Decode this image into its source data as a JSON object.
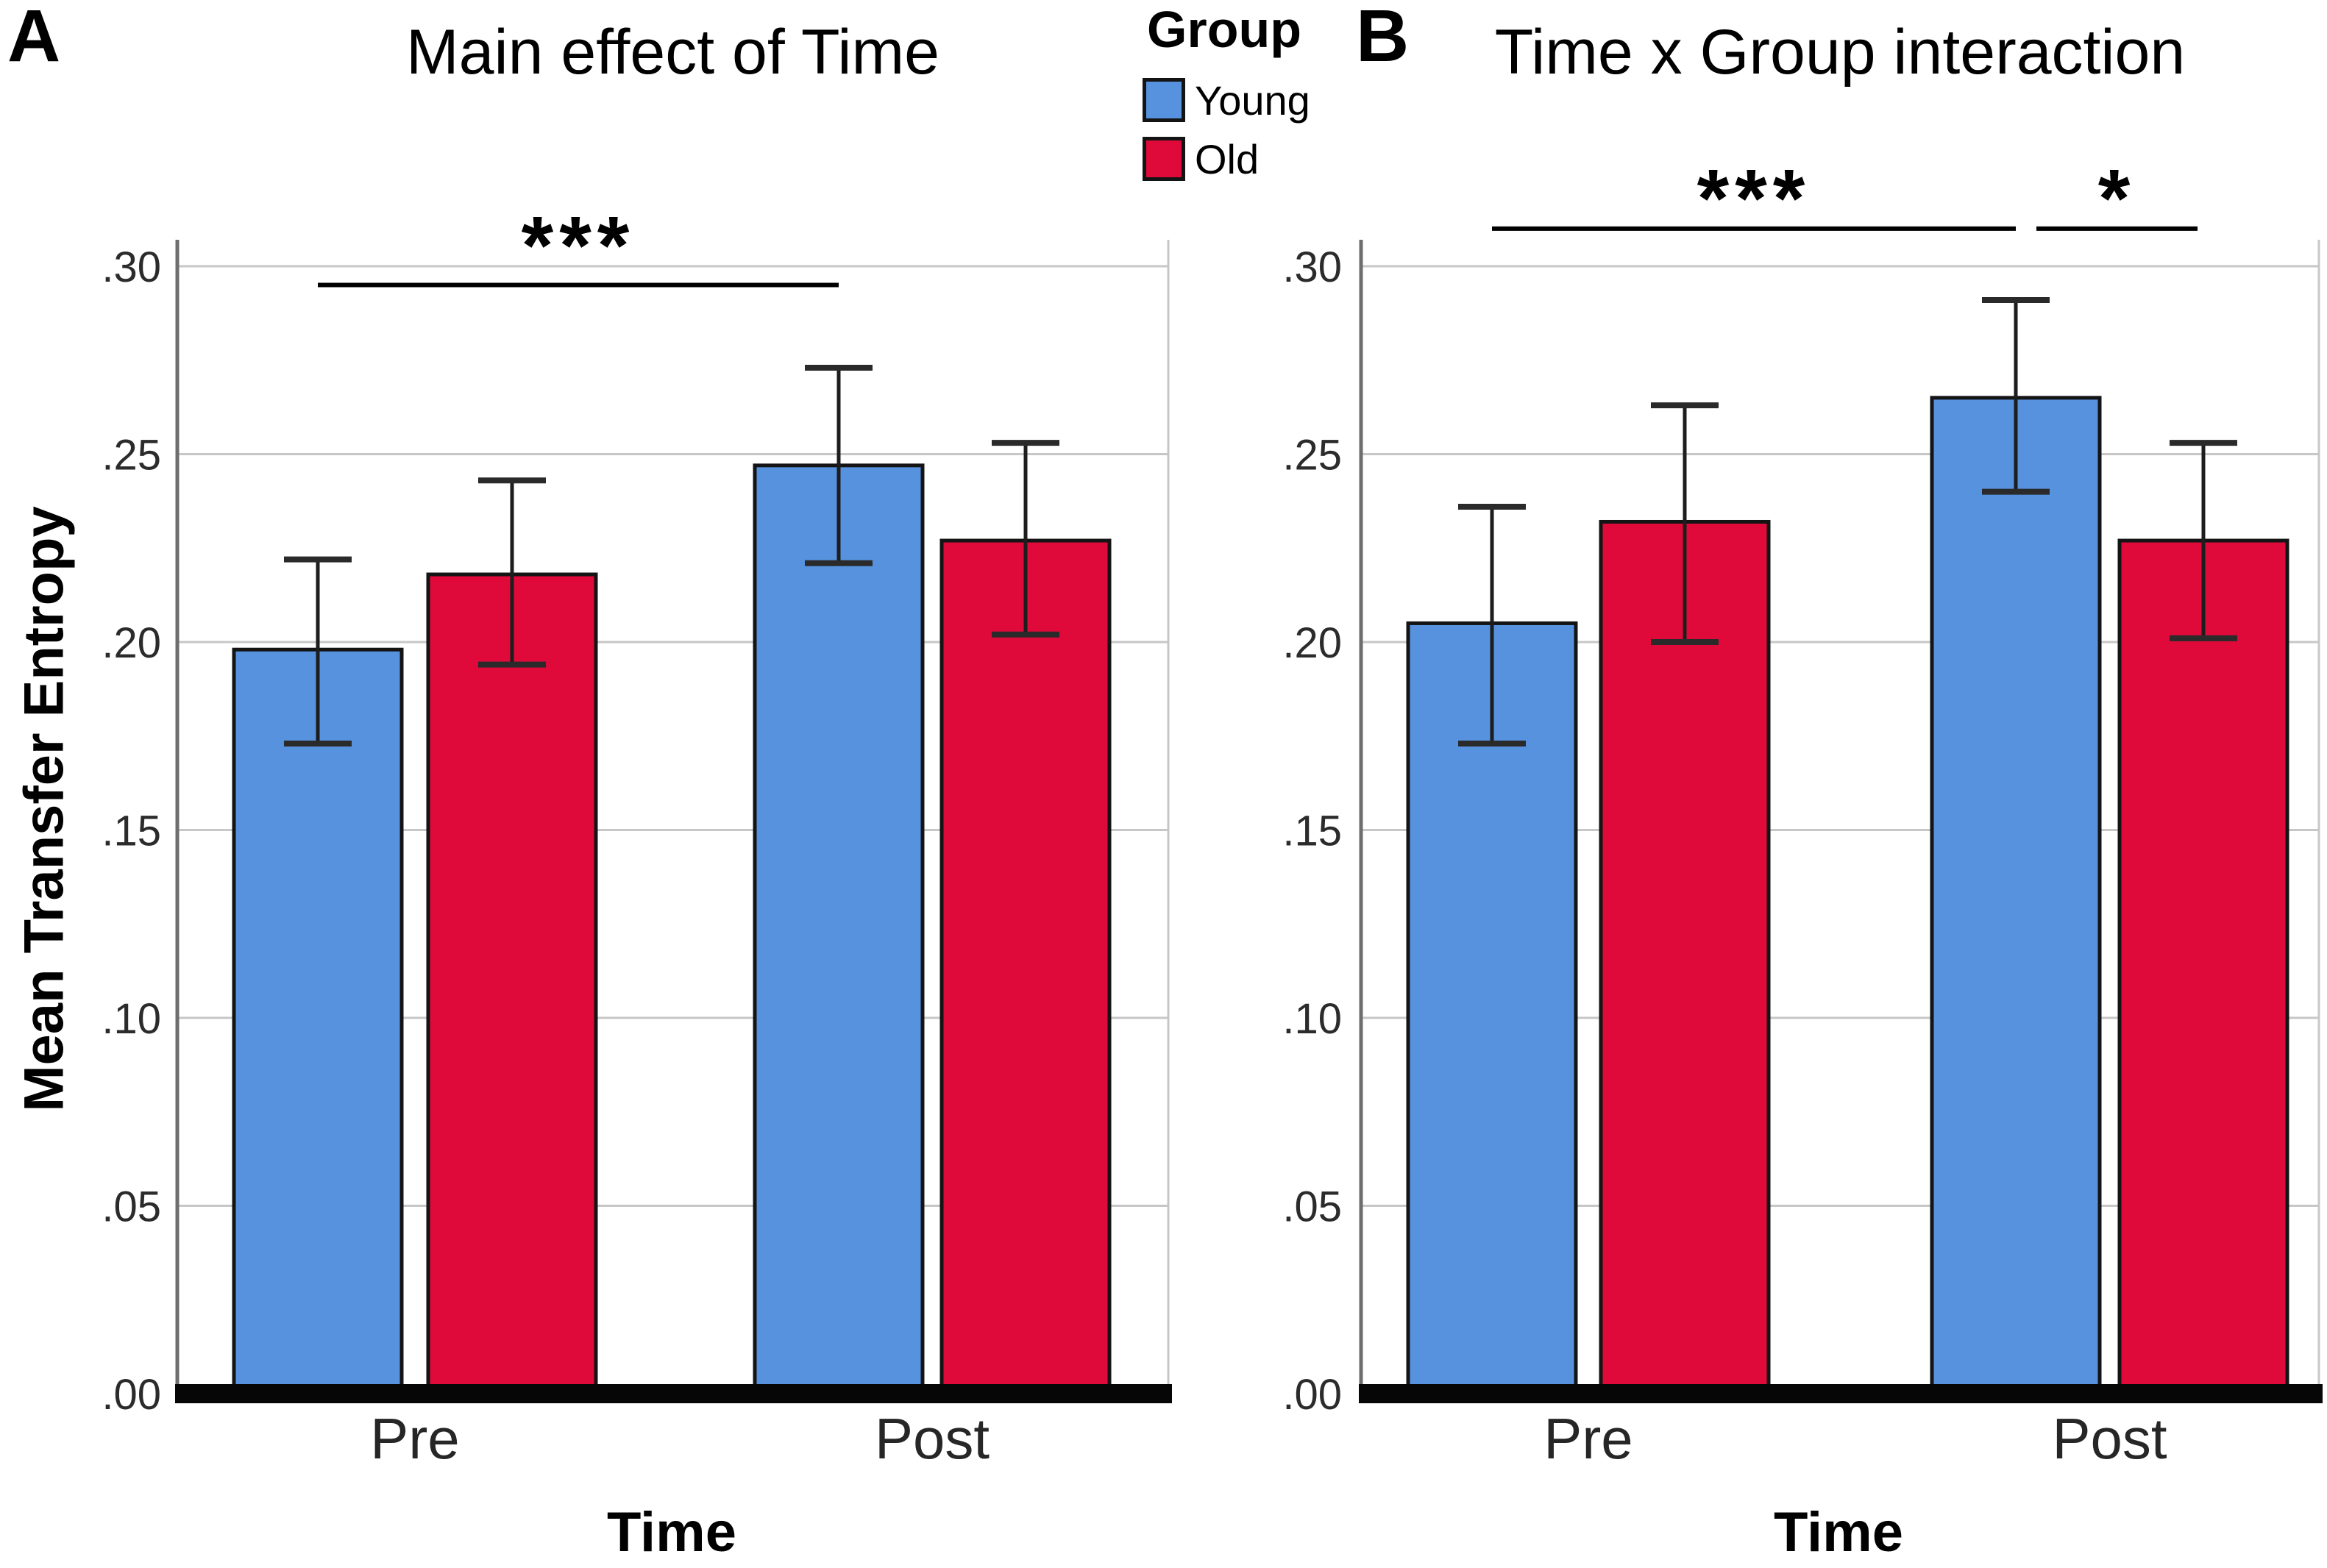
{
  "figure": {
    "panels": [
      {
        "letter": "A",
        "title": "Main effect of Time"
      },
      {
        "letter": "B",
        "title": "Time x Group interaction"
      }
    ]
  },
  "legend": {
    "title": "Group",
    "items": [
      {
        "label": "Young",
        "color": "#5792DF"
      },
      {
        "label": "Old",
        "color": "#DF0A3A"
      }
    ]
  },
  "y_axis": {
    "label": "Mean Transfer Entropy",
    "tick_labels": [
      ".00",
      ".05",
      ".10",
      ".15",
      ".20",
      ".25",
      ".30"
    ],
    "tick_values": [
      0,
      0.05,
      0.1,
      0.15,
      0.2,
      0.25,
      0.3
    ]
  },
  "x_axis": {
    "label": "Time",
    "categories": [
      "Pre",
      "Post"
    ]
  },
  "chart_data": [
    {
      "type": "bar",
      "panel": "A",
      "title": "Main effect of Time",
      "xlabel": "Time",
      "ylabel": "Mean Transfer Entropy",
      "ylim": [
        0,
        0.31
      ],
      "grid": true,
      "legend_position": "top-right-outside",
      "categories": [
        "Pre",
        "Post"
      ],
      "series": [
        {
          "name": "Young",
          "color": "#5792DF",
          "values": [
            0.198,
            0.247
          ],
          "err_low": [
            0.173,
            0.221
          ],
          "err_high": [
            0.222,
            0.273
          ]
        },
        {
          "name": "Old",
          "color": "#DF0A3A",
          "values": [
            0.218,
            0.227
          ],
          "err_low": [
            0.194,
            0.202
          ],
          "err_high": [
            0.243,
            0.253
          ]
        }
      ],
      "significance": [
        {
          "label": "***",
          "from_bar": 0,
          "to_bar": 2,
          "y": 0.295,
          "label_y": 0.3055
        }
      ]
    },
    {
      "type": "bar",
      "panel": "B",
      "title": "Time x Group interaction",
      "xlabel": "Time",
      "ylabel": "Mean Transfer Entropy",
      "ylim": [
        0,
        0.31
      ],
      "grid": true,
      "categories": [
        "Pre",
        "Post"
      ],
      "series": [
        {
          "name": "Young",
          "color": "#5792DF",
          "values": [
            0.205,
            0.265
          ],
          "err_low": [
            0.173,
            0.24
          ],
          "err_high": [
            0.236,
            0.291
          ]
        },
        {
          "name": "Old",
          "color": "#DF0A3A",
          "values": [
            0.232,
            0.227
          ],
          "err_low": [
            0.2,
            0.201
          ],
          "err_high": [
            0.263,
            0.253
          ]
        }
      ],
      "significance": [
        {
          "label": "***",
          "from_bar": 0,
          "to_bar": 2,
          "y": 0.31,
          "label_y": 0.318
        },
        {
          "label": "*",
          "from_bar": 2,
          "to_bar": 3,
          "y": 0.31,
          "label_y": 0.318,
          "x1_offset": 28,
          "x2_offset": -8
        }
      ]
    }
  ]
}
